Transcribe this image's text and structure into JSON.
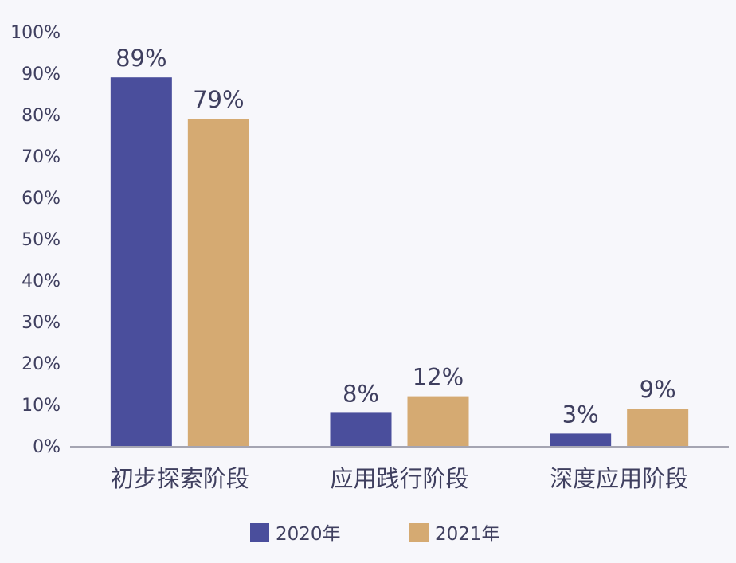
{
  "chart_data": {
    "type": "bar",
    "categories": [
      "初步探索阶段",
      "应用践行阶段",
      "深度应用阶段"
    ],
    "series": [
      {
        "name": "2020年",
        "values": [
          89,
          8,
          3
        ],
        "labels": [
          "89%",
          "8%",
          "3%"
        ],
        "color": "#4a4e9c"
      },
      {
        "name": "2021年",
        "values": [
          79,
          12,
          9
        ],
        "labels": [
          "79%",
          "12%",
          "9%"
        ],
        "color": "#d5aa72"
      }
    ],
    "y_ticks": [
      "0%",
      "10%",
      "20%",
      "30%",
      "40%",
      "50%",
      "60%",
      "70%",
      "80%",
      "90%",
      "100%"
    ],
    "ylim": [
      0,
      100
    ],
    "grid": false,
    "legend_position": "bottom",
    "title": "",
    "xlabel": "",
    "ylabel": "",
    "colors": {
      "text": "#3f3f5f",
      "axis": "#8a8a9a",
      "background": "#f7f7fb"
    }
  }
}
